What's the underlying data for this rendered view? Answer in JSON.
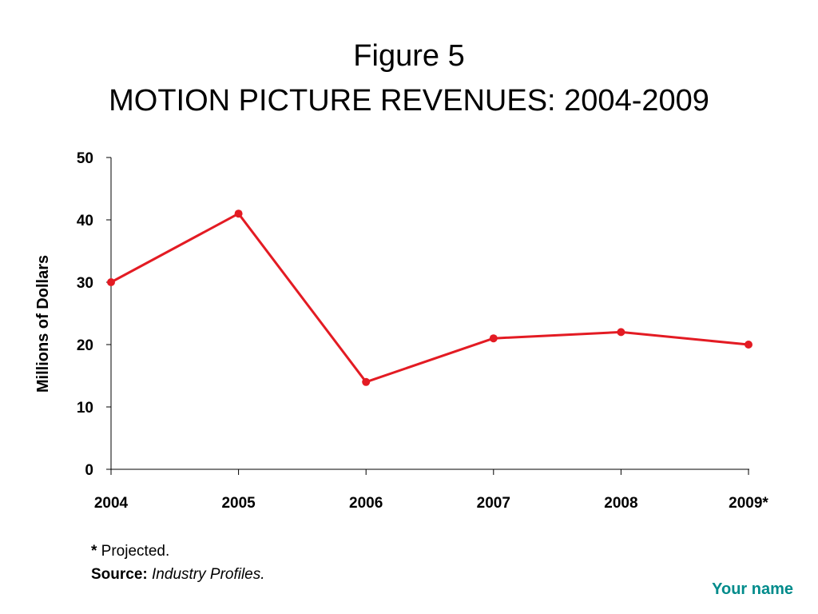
{
  "slide": {
    "title_line1": "Figure 5",
    "title_line2": "MOTION PICTURE REVENUES: 2004-2009",
    "footnote_marker": "*",
    "footnote_text": " Projected.",
    "source_label": "Source:",
    "source_text": " Industry Profiles.",
    "author": "Your name"
  },
  "colors": {
    "series": "#e31b23",
    "axis": "#000000",
    "author": "#008b8b"
  },
  "chart_data": {
    "type": "line",
    "title": "MOTION PICTURE REVENUES: 2004-2009",
    "xlabel": "",
    "ylabel": "Millions of Dollars",
    "categories": [
      "2004",
      "2005",
      "2006",
      "2007",
      "2008",
      "2009*"
    ],
    "series": [
      {
        "values": [
          30,
          41,
          14,
          21,
          22,
          20
        ]
      }
    ],
    "ylim": [
      0,
      50
    ],
    "yticks": [
      0,
      10,
      20,
      30,
      40,
      50
    ],
    "grid": false,
    "legend": "none",
    "markers": true
  }
}
